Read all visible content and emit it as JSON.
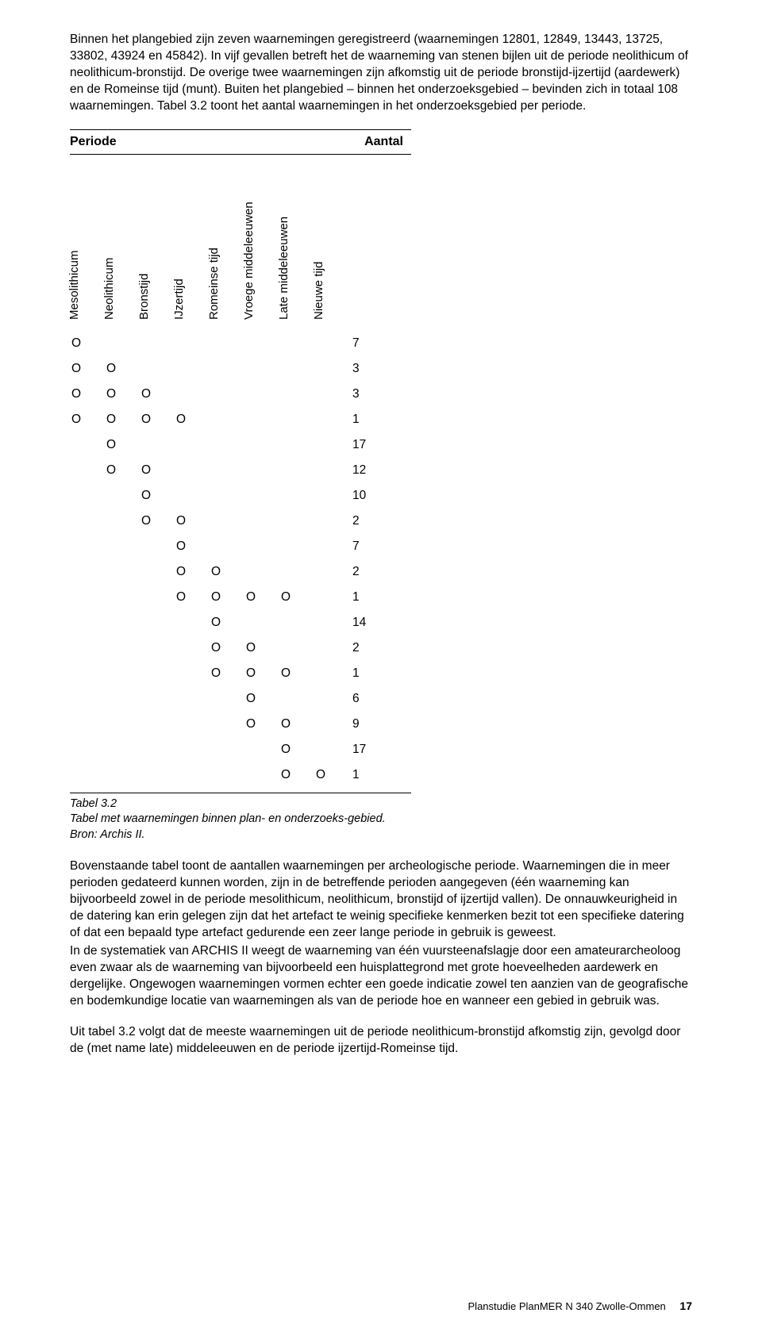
{
  "paragraphs": {
    "intro": "Binnen het plangebied zijn zeven waarnemingen geregistreerd (waarnemingen 12801, 12849, 13443, 13725, 33802, 43924 en 45842). In vijf gevallen betreft het de waarneming van stenen bijlen uit de periode neolithicum of neolithicum-bronstijd. De overige twee waarnemingen zijn afkomstig uit de periode bronstijd-ijzertijd (aardewerk) en de Romeinse tijd (munt). Buiten het plangebied – binnen het onderzoeksgebied – bevinden zich in totaal 108 waarnemingen. Tabel 3.2 toont het aantal waarnemingen in het onderzoeksgebied per periode.",
    "afterTable1": "Bovenstaande tabel toont de aantallen waarnemingen per archeologische periode. Waarnemingen die in meer perioden gedateerd kunnen worden, zijn in de betreffende perioden aangegeven (één waarneming kan bijvoorbeeld zowel in de periode mesolithicum, neolithicum, bronstijd of ijzertijd vallen). De onnauwkeurigheid in de datering kan erin gelegen zijn dat het artefact te weinig specifieke kenmerken bezit tot een specifieke datering of dat een bepaald type artefact gedurende een zeer lange periode in gebruik is geweest.",
    "afterTable2": "In de systematiek van ARCHIS II weegt de waarneming van één vuursteenafslagje door een amateurarcheoloog even zwaar als de waarneming van bijvoorbeeld een huisplattegrond met grote hoeveelheden aardewerk en dergelijke. Ongewogen waarnemingen vormen echter een goede indicatie zowel ten aanzien van de geografische en bodemkundige locatie van waarnemingen als van de periode hoe en wanneer een gebied in gebruik was.",
    "afterTable3": "Uit tabel 3.2 volgt dat de meeste waarnemingen uit de periode neolithicum-bronstijd afkomstig zijn, gevolgd door de (met name late) middeleeuwen en de periode ijzertijd-Romeinse tijd."
  },
  "table": {
    "periodLabel": "Periode",
    "countLabel": "Aantal",
    "columns": [
      "Mesolithicum",
      "Neolithicum",
      "Bronstijd",
      "IJzertijd",
      "Romeinse tijd",
      "Vroege middeleeuwen",
      "Late middeleeuwen",
      "Nieuwe tijd"
    ],
    "columnLeftPx": [
      14,
      58,
      102,
      146,
      190,
      234,
      278,
      322
    ],
    "rows": [
      {
        "marks": [
          1,
          0,
          0,
          0,
          0,
          0,
          0,
          0
        ],
        "count": 7
      },
      {
        "marks": [
          1,
          1,
          0,
          0,
          0,
          0,
          0,
          0
        ],
        "count": 3
      },
      {
        "marks": [
          1,
          1,
          1,
          0,
          0,
          0,
          0,
          0
        ],
        "count": 3
      },
      {
        "marks": [
          1,
          1,
          1,
          1,
          0,
          0,
          0,
          0
        ],
        "count": 1
      },
      {
        "marks": [
          0,
          1,
          0,
          0,
          0,
          0,
          0,
          0
        ],
        "count": 17
      },
      {
        "marks": [
          0,
          1,
          1,
          0,
          0,
          0,
          0,
          0
        ],
        "count": 12
      },
      {
        "marks": [
          0,
          0,
          1,
          0,
          0,
          0,
          0,
          0
        ],
        "count": 10
      },
      {
        "marks": [
          0,
          0,
          1,
          1,
          0,
          0,
          0,
          0
        ],
        "count": 2
      },
      {
        "marks": [
          0,
          0,
          0,
          1,
          0,
          0,
          0,
          0
        ],
        "count": 7
      },
      {
        "marks": [
          0,
          0,
          0,
          1,
          1,
          0,
          0,
          0
        ],
        "count": 2
      },
      {
        "marks": [
          0,
          0,
          0,
          1,
          1,
          1,
          1,
          0
        ],
        "count": 1
      },
      {
        "marks": [
          0,
          0,
          0,
          0,
          1,
          0,
          0,
          0
        ],
        "count": 14
      },
      {
        "marks": [
          0,
          0,
          0,
          0,
          1,
          1,
          0,
          0
        ],
        "count": 2
      },
      {
        "marks": [
          0,
          0,
          0,
          0,
          1,
          1,
          1,
          0
        ],
        "count": 1
      },
      {
        "marks": [
          0,
          0,
          0,
          0,
          0,
          1,
          0,
          0
        ],
        "count": 6
      },
      {
        "marks": [
          0,
          0,
          0,
          0,
          0,
          1,
          1,
          0
        ],
        "count": 9
      },
      {
        "marks": [
          0,
          0,
          0,
          0,
          0,
          0,
          1,
          0
        ],
        "count": 17
      },
      {
        "marks": [
          0,
          0,
          0,
          0,
          0,
          0,
          1,
          1
        ],
        "count": 1
      }
    ],
    "captionTitle": "Tabel 3.2",
    "captionText": "Tabel met waarnemingen binnen plan- en onderzoeks-gebied. Bron: Archis II."
  },
  "footer": {
    "text": "Planstudie PlanMER N 340 Zwolle-Ommen",
    "page": "17"
  }
}
